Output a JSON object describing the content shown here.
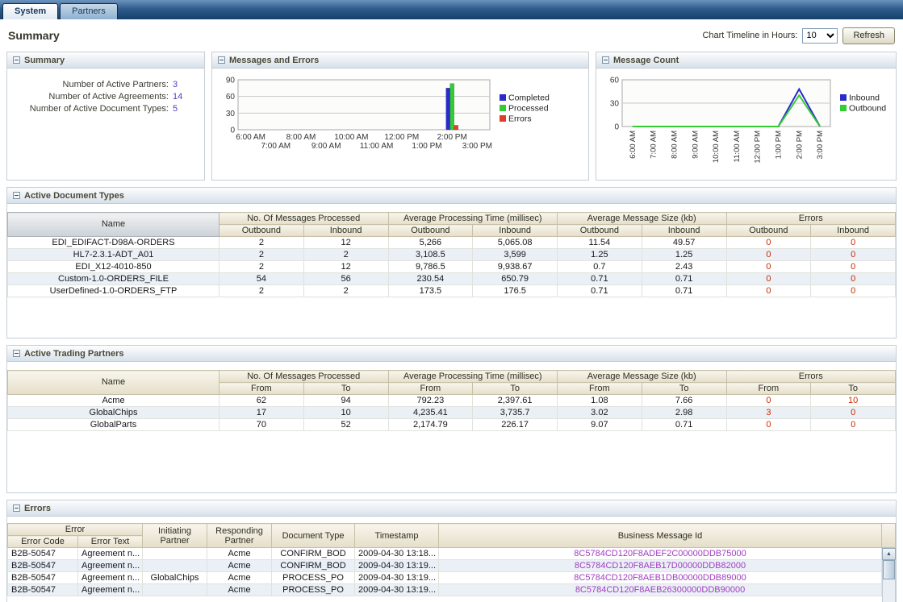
{
  "colors": {
    "completed": "#2b2bcc",
    "processed": "#33cc33",
    "errors_series": "#e03c2c",
    "inbound": "#2b2bcc",
    "outbound": "#33cc33",
    "error_value": "#cc2a00",
    "message_id_link": "#a13cc0",
    "summary_value": "#4a3fc4"
  },
  "icons": {
    "scroll_up": "▲",
    "scroll_down": "▼"
  },
  "tabs": {
    "system": "System",
    "partners": "Partners"
  },
  "toolbar": {
    "page_title": "Summary",
    "timeline_label": "Chart Timeline in Hours:",
    "timeline_value": "10",
    "refresh_label": "Refresh"
  },
  "summary": {
    "title": "Summary",
    "items": [
      {
        "label": "Number of Active Partners:",
        "value": "3"
      },
      {
        "label": "Number of Active Agreements:",
        "value": "14"
      },
      {
        "label": "Number of Active Document Types:",
        "value": "5"
      }
    ]
  },
  "charts": {
    "messages_errors_title": "Messages and Errors",
    "message_count_title": "Message Count"
  },
  "chart_data": [
    {
      "type": "bar",
      "title": "Messages and Errors",
      "x": [
        "6:00 AM",
        "7:00 AM",
        "8:00 AM",
        "9:00 AM",
        "10:00 AM",
        "11:00 AM",
        "12:00 PM",
        "1:00 PM",
        "2:00 PM",
        "3:00 PM"
      ],
      "series": [
        {
          "name": "Completed",
          "color": "#2b2bcc",
          "values": [
            0,
            0,
            0,
            0,
            0,
            0,
            0,
            0,
            75,
            0
          ]
        },
        {
          "name": "Processed",
          "color": "#33cc33",
          "values": [
            0,
            0,
            0,
            0,
            0,
            0,
            0,
            0,
            83,
            0
          ]
        },
        {
          "name": "Errors",
          "color": "#e03c2c",
          "values": [
            0,
            0,
            0,
            0,
            0,
            0,
            0,
            0,
            8,
            0
          ]
        }
      ],
      "ylim": [
        0,
        90
      ],
      "yticks": [
        0,
        30,
        60,
        90
      ],
      "xlabel": "",
      "ylabel": "",
      "grid": true,
      "legend_position": "right"
    },
    {
      "type": "line",
      "title": "Message Count",
      "x": [
        "6:00 AM",
        "7:00 AM",
        "8:00 AM",
        "9:00 AM",
        "10:00 AM",
        "11:00 AM",
        "12:00 PM",
        "1:00 PM",
        "2:00 PM",
        "3:00 PM"
      ],
      "series": [
        {
          "name": "Inbound",
          "color": "#2b2bcc",
          "values": [
            0,
            0,
            0,
            0,
            0,
            0,
            0,
            0,
            48,
            0
          ]
        },
        {
          "name": "Outbound",
          "color": "#33cc33",
          "values": [
            0,
            0,
            0,
            0,
            0,
            0,
            0,
            0,
            40,
            0
          ]
        }
      ],
      "ylim": [
        0,
        60
      ],
      "yticks": [
        0,
        30,
        60
      ],
      "xlabel": "",
      "ylabel": "",
      "grid": true,
      "legend_position": "right"
    }
  ],
  "document_types": {
    "title": "Active Document Types",
    "headers": {
      "name": "Name",
      "groups": [
        "No. Of Messages Processed",
        "Average Processing Time (millisec)",
        "Average Message Size (kb)",
        "Errors"
      ],
      "subs": [
        "Outbound",
        "Inbound",
        "Outbound",
        "Inbound",
        "Outbound",
        "Inbound",
        "Outbound",
        "Inbound"
      ]
    },
    "rows": [
      [
        "EDI_EDIFACT-D98A-ORDERS",
        "2",
        "12",
        "5,266",
        "5,065.08",
        "11.54",
        "49.57",
        "0",
        "0"
      ],
      [
        "HL7-2.3.1-ADT_A01",
        "2",
        "2",
        "3,108.5",
        "3,599",
        "1.25",
        "1.25",
        "0",
        "0"
      ],
      [
        "EDI_X12-4010-850",
        "2",
        "12",
        "9,786.5",
        "9,938.67",
        "0.7",
        "2.43",
        "0",
        "0"
      ],
      [
        "Custom-1.0-ORDERS_FILE",
        "54",
        "56",
        "230.54",
        "650.79",
        "0.71",
        "0.71",
        "0",
        "0"
      ],
      [
        "UserDefined-1.0-ORDERS_FTP",
        "2",
        "2",
        "173.5",
        "176.5",
        "0.71",
        "0.71",
        "0",
        "0"
      ]
    ]
  },
  "trading_partners": {
    "title": "Active Trading Partners",
    "headers": {
      "name": "Name",
      "groups": [
        "No. Of Messages Processed",
        "Average Processing Time (millisec)",
        "Average Message Size (kb)",
        "Errors"
      ],
      "subs": [
        "From",
        "To",
        "From",
        "To",
        "From",
        "To",
        "From",
        "To"
      ]
    },
    "rows": [
      [
        "Acme",
        "62",
        "94",
        "792.23",
        "2,397.61",
        "1.08",
        "7.66",
        "0",
        "10"
      ],
      [
        "GlobalChips",
        "17",
        "10",
        "4,235.41",
        "3,735.7",
        "3.02",
        "2.98",
        "3",
        "0"
      ],
      [
        "GlobalParts",
        "70",
        "52",
        "2,174.79",
        "226.17",
        "9.07",
        "0.71",
        "0",
        "0"
      ]
    ]
  },
  "errors_table": {
    "title": "Errors",
    "headers": {
      "error_group": "Error",
      "error_code": "Error Code",
      "error_text": "Error Text",
      "initiating_partner": "Initiating Partner",
      "responding_partner": "Responding Partner",
      "document_type": "Document Type",
      "timestamp": "Timestamp",
      "business_message_id": "Business Message Id"
    },
    "rows": [
      [
        "B2B-50547",
        "Agreement n...",
        "",
        "Acme",
        "CONFIRM_BOD",
        "2009-04-30 13:18...",
        "8C5784CD120F8ADEF2C00000DDB75000"
      ],
      [
        "B2B-50547",
        "Agreement n...",
        "",
        "Acme",
        "CONFIRM_BOD",
        "2009-04-30 13:19...",
        "8C5784CD120F8AEB17D00000DDB82000"
      ],
      [
        "B2B-50547",
        "Agreement n...",
        "GlobalChips",
        "Acme",
        "PROCESS_PO",
        "2009-04-30 13:19...",
        "8C5784CD120F8AEB1DB00000DDB89000"
      ],
      [
        "B2B-50547",
        "Agreement n...",
        "",
        "Acme",
        "PROCESS_PO",
        "2009-04-30 13:19...",
        "8C5784CD120F8AEB26300000DDB90000"
      ]
    ]
  }
}
